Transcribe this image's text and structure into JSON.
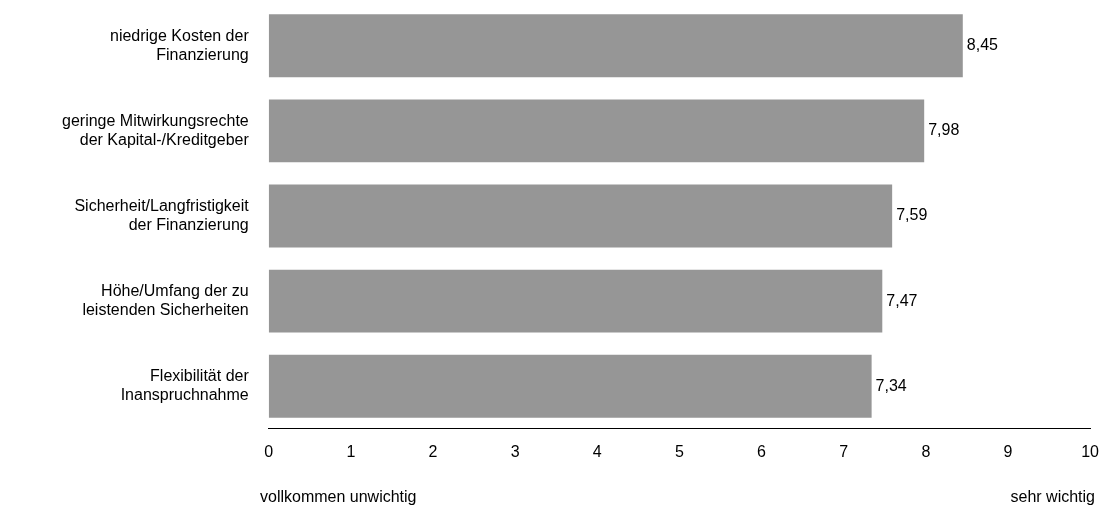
{
  "chart_data": {
    "type": "bar",
    "orientation": "horizontal",
    "categories": [
      "niedrige Kosten der\nFinanzierung",
      "geringe Mitwirkungsrechte\nder Kapital-/Kreditgeber",
      "Sicherheit/Langfristigkeit\nder Finanzierung",
      "Höhe/Umfang der zu\nleistenden Sicherheiten",
      "Flexibilität der\nInanspruchnahme"
    ],
    "values": [
      8.45,
      7.98,
      7.59,
      7.47,
      7.34
    ],
    "value_labels": [
      "8,45",
      "7,98",
      "7,59",
      "7,47",
      "7,34"
    ],
    "color": "#969696",
    "xlim": [
      0,
      10
    ],
    "xticks": [
      0,
      1,
      2,
      3,
      4,
      5,
      6,
      7,
      8,
      9,
      10
    ],
    "grid": false,
    "legend": false,
    "annotations": [
      "vollkommen unwichtig",
      "sehr wichtig"
    ]
  }
}
